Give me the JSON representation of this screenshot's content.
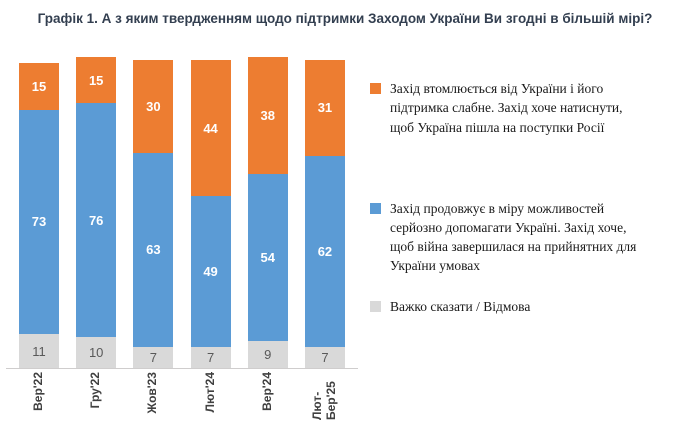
{
  "chart_data": {
    "type": "bar",
    "stacked": true,
    "title": "Графік 1. А з яким твердженням щодо підтримки Заходом України Ви згодні в більшій мірі?",
    "categories": [
      "Вер'22",
      "Гру'22",
      "Жов'23",
      "Лют'24",
      "Вер'24",
      "Лют-Бер'25"
    ],
    "series": [
      {
        "name": "Захід втомлюється від України і його підтримка слабне. Захід хоче натиснути, щоб Україна пішла на поступки Росії",
        "color": "#ED7D31",
        "label_color": "#FFFFFF",
        "values": [
          15,
          15,
          30,
          44,
          38,
          31
        ]
      },
      {
        "name": "Захід продовжує в міру можливостей серйозно допомагати Україні. Захід хоче, щоб війна завершилася на прийнятних для України умовах",
        "color": "#5B9BD5",
        "label_color": "#FFFFFF",
        "values": [
          73,
          76,
          63,
          49,
          54,
          62
        ]
      },
      {
        "name": "Важко сказати / Відмова",
        "color": "#D9D9D9",
        "label_color": "#595959",
        "values": [
          11,
          10,
          7,
          7,
          9,
          7
        ]
      }
    ],
    "ylim": [
      0,
      100
    ],
    "grid": false,
    "axis_line_color": "#CFCDCD",
    "legend_position": "right",
    "xlabel": "",
    "ylabel": ""
  }
}
